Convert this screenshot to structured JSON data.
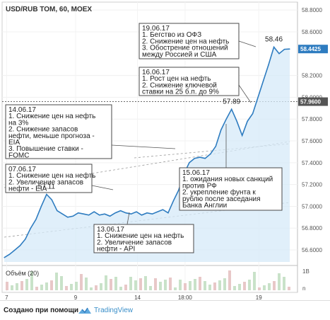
{
  "header": {
    "title": "USD/RUB TOM, 60, MOEX"
  },
  "volume": {
    "label": "Объём (20)",
    "axis_ticks": [
      "1B",
      "n"
    ]
  },
  "footer": {
    "made_with": "Создано при помощи",
    "brand": "TradingView"
  },
  "colors": {
    "line": "#2e7cc0",
    "area": "#d6eaf8",
    "price_label_last": "#2e7cc0",
    "price_label_level": "#555555"
  },
  "chart_data": {
    "type": "area",
    "xticks": [
      "7",
      "9",
      "14",
      "18:00",
      "19"
    ],
    "yticks": [
      "56.6000",
      "56.8000",
      "57.0000",
      "57.2000",
      "57.4000",
      "57.6000",
      "57.8000",
      "58.0000",
      "58.2000",
      "58.6000",
      "58.8000"
    ],
    "ylim": [
      56.49,
      58.84
    ],
    "price_labels": [
      {
        "value": 58.4425,
        "text": "58.4425",
        "kind": "last"
      },
      {
        "value": 57.96,
        "text": "57.9600",
        "kind": "level"
      }
    ],
    "data_labels": [
      {
        "text": "58.46",
        "i": 51,
        "value": 58.46
      },
      {
        "text": "57.89",
        "i": 43,
        "value": 57.89
      },
      {
        "text": "57.11",
        "i": 8,
        "value": 57.11
      }
    ],
    "series": [
      {
        "values": [
          56.53,
          56.56,
          56.6,
          56.64,
          56.7,
          56.8,
          56.88,
          57.0,
          57.11,
          57.06,
          56.96,
          56.93,
          56.9,
          56.91,
          56.94,
          56.93,
          56.92,
          56.95,
          56.92,
          56.93,
          56.91,
          56.94,
          56.96,
          56.94,
          56.93,
          56.95,
          56.92,
          56.94,
          56.93,
          56.95,
          56.97,
          56.94,
          57.05,
          57.15,
          57.3,
          57.4,
          57.44,
          57.45,
          57.44,
          57.48,
          57.55,
          57.7,
          57.8,
          57.89,
          57.78,
          57.65,
          57.78,
          57.85,
          58.0,
          58.15,
          58.3,
          58.46,
          58.4,
          58.44,
          58.4425
        ]
      }
    ],
    "annotations": [
      {
        "lines": [
          "19.06.17",
          "1. Бегство из ОФЗ",
          "2. Снижение цен на нефть",
          "3. Обострение отношений",
          "между Россией и США"
        ]
      },
      {
        "lines": [
          "16.06.17",
          "1. Рост цен на нефть",
          "2. Снижение ключевой",
          "ставки на 25 б.п. до 9%"
        ]
      },
      {
        "lines": [
          "14.06.17",
          "1. Снижение цен на нефть",
          "на 3%",
          "2. Снижение запасов",
          "нефти, меньше прогноза -",
          "EIA",
          "3. Повышение ставки -",
          "FOMC"
        ]
      },
      {
        "lines": [
          "07.06.17",
          "1. Снижение цен на нефть",
          "2. Увеличение запасов",
          "нефти - EIA"
        ]
      },
      {
        "lines": [
          "15.06.17",
          "1. ожидания новых санкций",
          "против РФ",
          "2. укрепление фунта к",
          "рублю после заседания",
          "Банка Англии"
        ]
      },
      {
        "lines": [
          "13.06.17",
          "1. Снижение цен на нефть",
          "2. Увеличение запасов",
          "нефти - API"
        ]
      }
    ]
  }
}
